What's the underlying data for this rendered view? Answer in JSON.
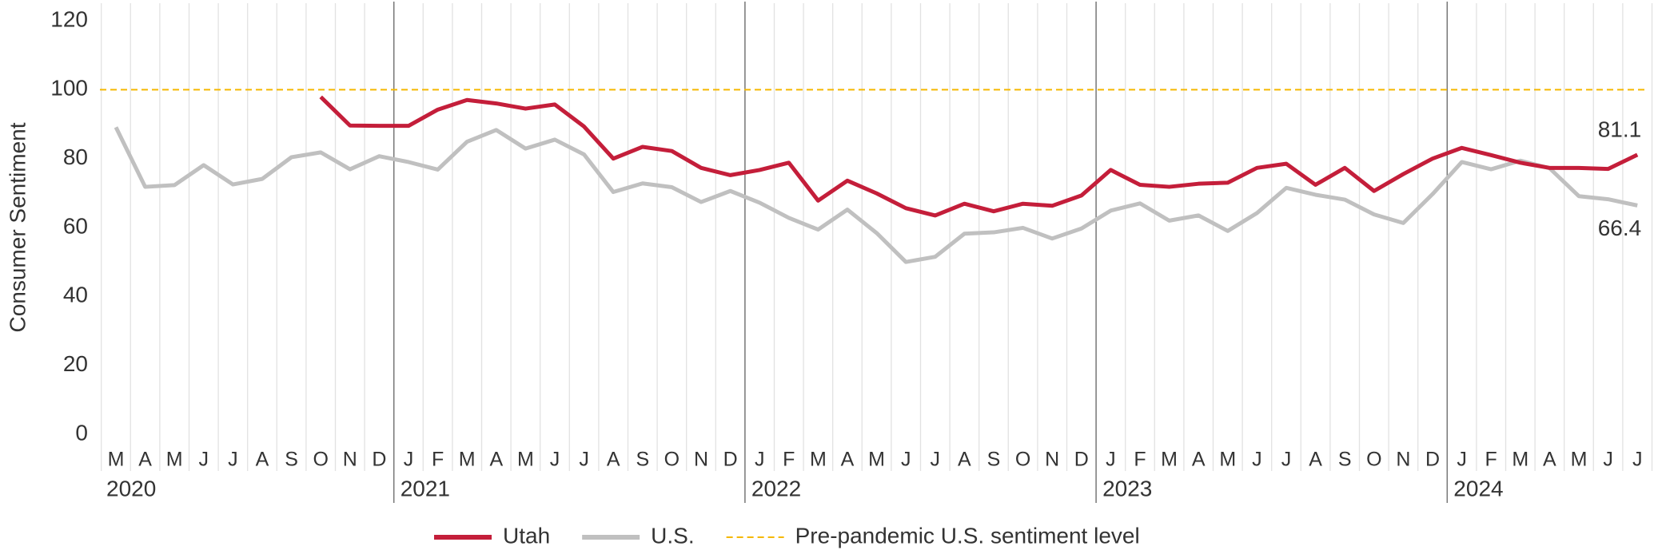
{
  "chart_data": {
    "type": "line",
    "y_label": "Consumer Sentiment",
    "categories": [
      "M",
      "A",
      "M",
      "J",
      "J",
      "A",
      "S",
      "O",
      "N",
      "D",
      "J",
      "F",
      "M",
      "A",
      "M",
      "J",
      "J",
      "A",
      "S",
      "O",
      "N",
      "D",
      "J",
      "F",
      "M",
      "A",
      "M",
      "J",
      "J",
      "A",
      "S",
      "O",
      "N",
      "D",
      "J",
      "F",
      "M",
      "A",
      "M",
      "J",
      "J",
      "A",
      "S",
      "O",
      "N",
      "D",
      "J",
      "F",
      "M",
      "A",
      "M",
      "J",
      "J"
    ],
    "years": [
      "2020",
      "2021",
      "2022",
      "2023",
      "2024"
    ],
    "series": [
      {
        "name": "Utah",
        "color": "#c41e3a",
        "values": [
          null,
          null,
          null,
          null,
          null,
          null,
          null,
          97.9,
          89.6,
          89.5,
          89.5,
          94.2,
          97,
          96,
          94.5,
          95.7,
          89.3,
          80,
          83.4,
          82.2,
          77.3,
          75.2,
          76.7,
          78.8,
          67.8,
          73.6,
          69.9,
          65.6,
          63.5,
          66.9,
          64.7,
          66.9,
          66.3,
          69.3,
          76.7,
          72.4,
          71.8,
          72.7,
          73,
          77.3,
          78.5,
          72.4,
          77.3,
          70.6,
          75.5,
          80,
          83.1,
          81,
          78.8,
          77.3,
          77.3,
          77,
          81.1
        ]
      },
      {
        "name": "U.S.",
        "color": "#c0c0c0",
        "values": [
          89.1,
          71.8,
          72.3,
          78.1,
          72.5,
          74.1,
          80.4,
          81.8,
          76.9,
          80.7,
          79,
          76.8,
          84.9,
          88.3,
          82.9,
          85.5,
          81.2,
          70.3,
          72.8,
          71.7,
          67.4,
          70.6,
          67.2,
          62.8,
          59.4,
          65.2,
          58.4,
          50,
          51.5,
          58.2,
          58.6,
          59.9,
          56.8,
          59.7,
          64.9,
          67,
          62,
          63.5,
          59,
          64.2,
          71.5,
          69.5,
          68.1,
          63.8,
          61.3,
          69.7,
          79,
          76.9,
          79.4,
          77.2,
          69.1,
          68.2,
          66.4
        ]
      }
    ],
    "reference_line": {
      "name": "Pre-pandemic U.S. sentiment level",
      "value": 100,
      "color": "#f5b800"
    },
    "ylim": [
      0,
      120
    ],
    "yticks": [
      0,
      20,
      40,
      60,
      80,
      100,
      120
    ]
  }
}
